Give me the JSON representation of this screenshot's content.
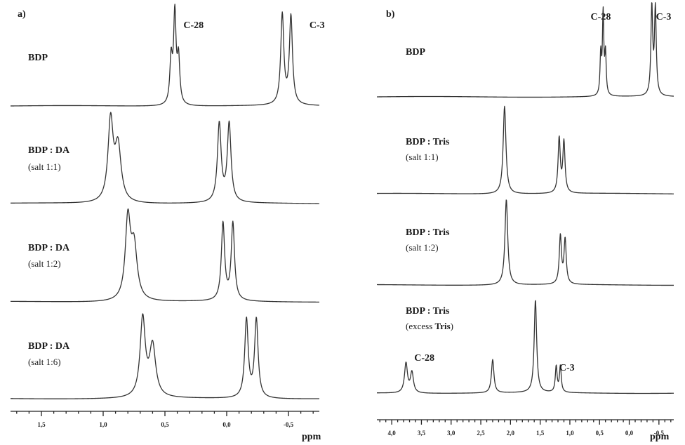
{
  "colors": {
    "trace": "#333333",
    "text": "#1a1a1a",
    "background": "#ffffff"
  },
  "chart_data": [
    {
      "type": "line",
      "panel_label": "a)",
      "xlabel": "ppm",
      "xlim": [
        1.75,
        -0.75
      ],
      "x_reversed": true,
      "ticks": [
        {
          "value": 1.5,
          "label": "1,5"
        },
        {
          "value": 1.0,
          "label": "1,0"
        },
        {
          "value": 0.5,
          "label": "0,5"
        },
        {
          "value": 0.0,
          "label": "0,0"
        },
        {
          "value": -0.5,
          "label": "-0,5"
        }
      ],
      "annotations": [
        {
          "text": "C-28",
          "x": 0.35
        },
        {
          "text": "C-3",
          "x": -0.67
        }
      ],
      "series": [
        {
          "name_bold": "BDP",
          "name_rest": "",
          "subtitle": "",
          "peaks": [
            {
              "x": 0.45,
              "h": 0.5,
              "w": 0.012
            },
            {
              "x": 0.42,
              "h": 1.0,
              "w": 0.012
            },
            {
              "x": 0.39,
              "h": 0.5,
              "w": 0.012
            },
            {
              "x": -0.45,
              "h": 1.0,
              "w": 0.015
            },
            {
              "x": -0.52,
              "h": 0.98,
              "w": 0.015
            }
          ]
        },
        {
          "name_bold": "BDP : DA",
          "name_rest": "",
          "subtitle": "(salt 1:1)",
          "peaks": [
            {
              "x": 0.94,
              "h": 0.88,
              "w": 0.025
            },
            {
              "x": 0.88,
              "h": 0.6,
              "w": 0.03
            },
            {
              "x": 0.06,
              "h": 0.86,
              "w": 0.018
            },
            {
              "x": -0.02,
              "h": 0.86,
              "w": 0.018
            }
          ]
        },
        {
          "name_bold": "BDP : DA",
          "name_rest": "",
          "subtitle": "(salt 1:2)",
          "peaks": [
            {
              "x": 0.8,
              "h": 0.88,
              "w": 0.025
            },
            {
              "x": 0.75,
              "h": 0.58,
              "w": 0.03
            },
            {
              "x": 0.03,
              "h": 0.86,
              "w": 0.016
            },
            {
              "x": -0.05,
              "h": 0.86,
              "w": 0.016
            }
          ]
        },
        {
          "name_bold": "BDP : DA",
          "name_rest": "",
          "subtitle": "(salt 1:6)",
          "peaks": [
            {
              "x": 0.68,
              "h": 0.86,
              "w": 0.025
            },
            {
              "x": 0.6,
              "h": 0.56,
              "w": 0.03
            },
            {
              "x": -0.16,
              "h": 0.86,
              "w": 0.017
            },
            {
              "x": -0.24,
              "h": 0.86,
              "w": 0.017
            }
          ]
        }
      ]
    },
    {
      "type": "line",
      "panel_label": "b)",
      "xlabel": "ppm",
      "xlim": [
        4.25,
        -0.75
      ],
      "x_reversed": true,
      "ticks": [
        {
          "value": 4.0,
          "label": "4,0"
        },
        {
          "value": 3.5,
          "label": "3,5"
        },
        {
          "value": 3.0,
          "label": "3,0"
        },
        {
          "value": 2.5,
          "label": "2,5"
        },
        {
          "value": 2.0,
          "label": "2,0"
        },
        {
          "value": 1.5,
          "label": "1,5"
        },
        {
          "value": 1.0,
          "label": "1,0"
        },
        {
          "value": 0.5,
          "label": "0,5"
        },
        {
          "value": 0.0,
          "label": "0,0"
        },
        {
          "value": -0.5,
          "label": "-0,5"
        }
      ],
      "annotations": [
        {
          "text": "C-28",
          "x": 0.65
        },
        {
          "text": "C-3",
          "x": -0.45
        }
      ],
      "series": [
        {
          "name_bold": "BDP",
          "name_rest": "",
          "subtitle": "",
          "peaks": [
            {
              "x": 0.48,
              "h": 0.46,
              "w": 0.014
            },
            {
              "x": 0.44,
              "h": 0.92,
              "w": 0.014
            },
            {
              "x": 0.4,
              "h": 0.46,
              "w": 0.014
            },
            {
              "x": -0.38,
              "h": 1.0,
              "w": 0.018
            },
            {
              "x": -0.44,
              "h": 0.98,
              "w": 0.018
            }
          ]
        },
        {
          "name_bold": "BDP : Tris",
          "name_rest": "",
          "subtitle": "(salt 1:1)",
          "peaks": [
            {
              "x": 2.1,
              "h": 1.0,
              "w": 0.028
            },
            {
              "x": 1.18,
              "h": 0.62,
              "w": 0.022
            },
            {
              "x": 1.1,
              "h": 0.58,
              "w": 0.022
            }
          ]
        },
        {
          "name_bold": "BDP : Tris",
          "name_rest": "",
          "subtitle": "(salt 1:2)",
          "peaks": [
            {
              "x": 2.07,
              "h": 1.0,
              "w": 0.028
            },
            {
              "x": 1.16,
              "h": 0.56,
              "w": 0.022
            },
            {
              "x": 1.08,
              "h": 0.52,
              "w": 0.022
            }
          ]
        },
        {
          "name_bold": "BDP : Tris",
          "name_rest": "",
          "subtitle": "(excess ",
          "subtitle_bold": "Tris",
          "subtitle_end": ")",
          "peaks": [
            {
              "x": 3.76,
              "h": 0.32,
              "w": 0.03
            },
            {
              "x": 3.66,
              "h": 0.22,
              "w": 0.03
            },
            {
              "x": 2.3,
              "h": 0.36,
              "w": 0.025
            },
            {
              "x": 1.58,
              "h": 1.0,
              "w": 0.025
            },
            {
              "x": 1.23,
              "h": 0.28,
              "w": 0.018
            },
            {
              "x": 1.16,
              "h": 0.28,
              "w": 0.018
            }
          ],
          "peak_labels": [
            {
              "text": "C-28",
              "x": 3.45
            },
            {
              "text": "C-3",
              "x": 1.05
            }
          ]
        }
      ]
    }
  ]
}
